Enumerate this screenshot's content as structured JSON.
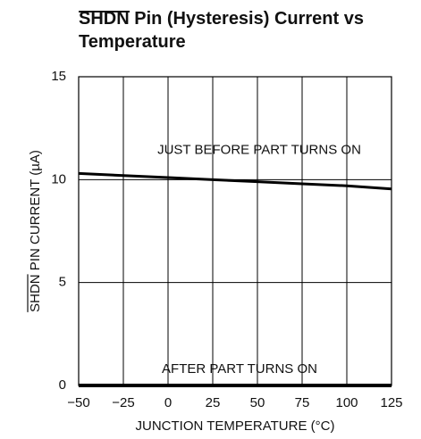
{
  "chart_data": {
    "type": "line",
    "title": "SHDN Pin (Hysteresis) Current vs Temperature",
    "x_label": "JUNCTION TEMPERATURE (°C)",
    "y_label": "SHDN PIN CURRENT (µA)",
    "x": [
      -50,
      -25,
      0,
      25,
      50,
      75,
      100,
      125
    ],
    "series": [
      {
        "name": "JUST BEFORE PART TURNS ON",
        "color": "#000000",
        "values": [
          10.3,
          10.2,
          10.1,
          10.0,
          9.9,
          9.8,
          9.7,
          9.55
        ]
      },
      {
        "name": "AFTER PART TURNS ON",
        "color": "#000000",
        "values": [
          0,
          0,
          0,
          0,
          0,
          0,
          0,
          0
        ]
      }
    ],
    "xlim": [
      -50,
      125
    ],
    "xticks": [
      {
        "value": -50,
        "label": "−50"
      },
      {
        "value": -25,
        "label": "−25"
      },
      0,
      25,
      50,
      75,
      100,
      125
    ],
    "ylim": [
      0,
      15
    ],
    "yticks": [
      0,
      5,
      10,
      15
    ],
    "grid": true
  }
}
